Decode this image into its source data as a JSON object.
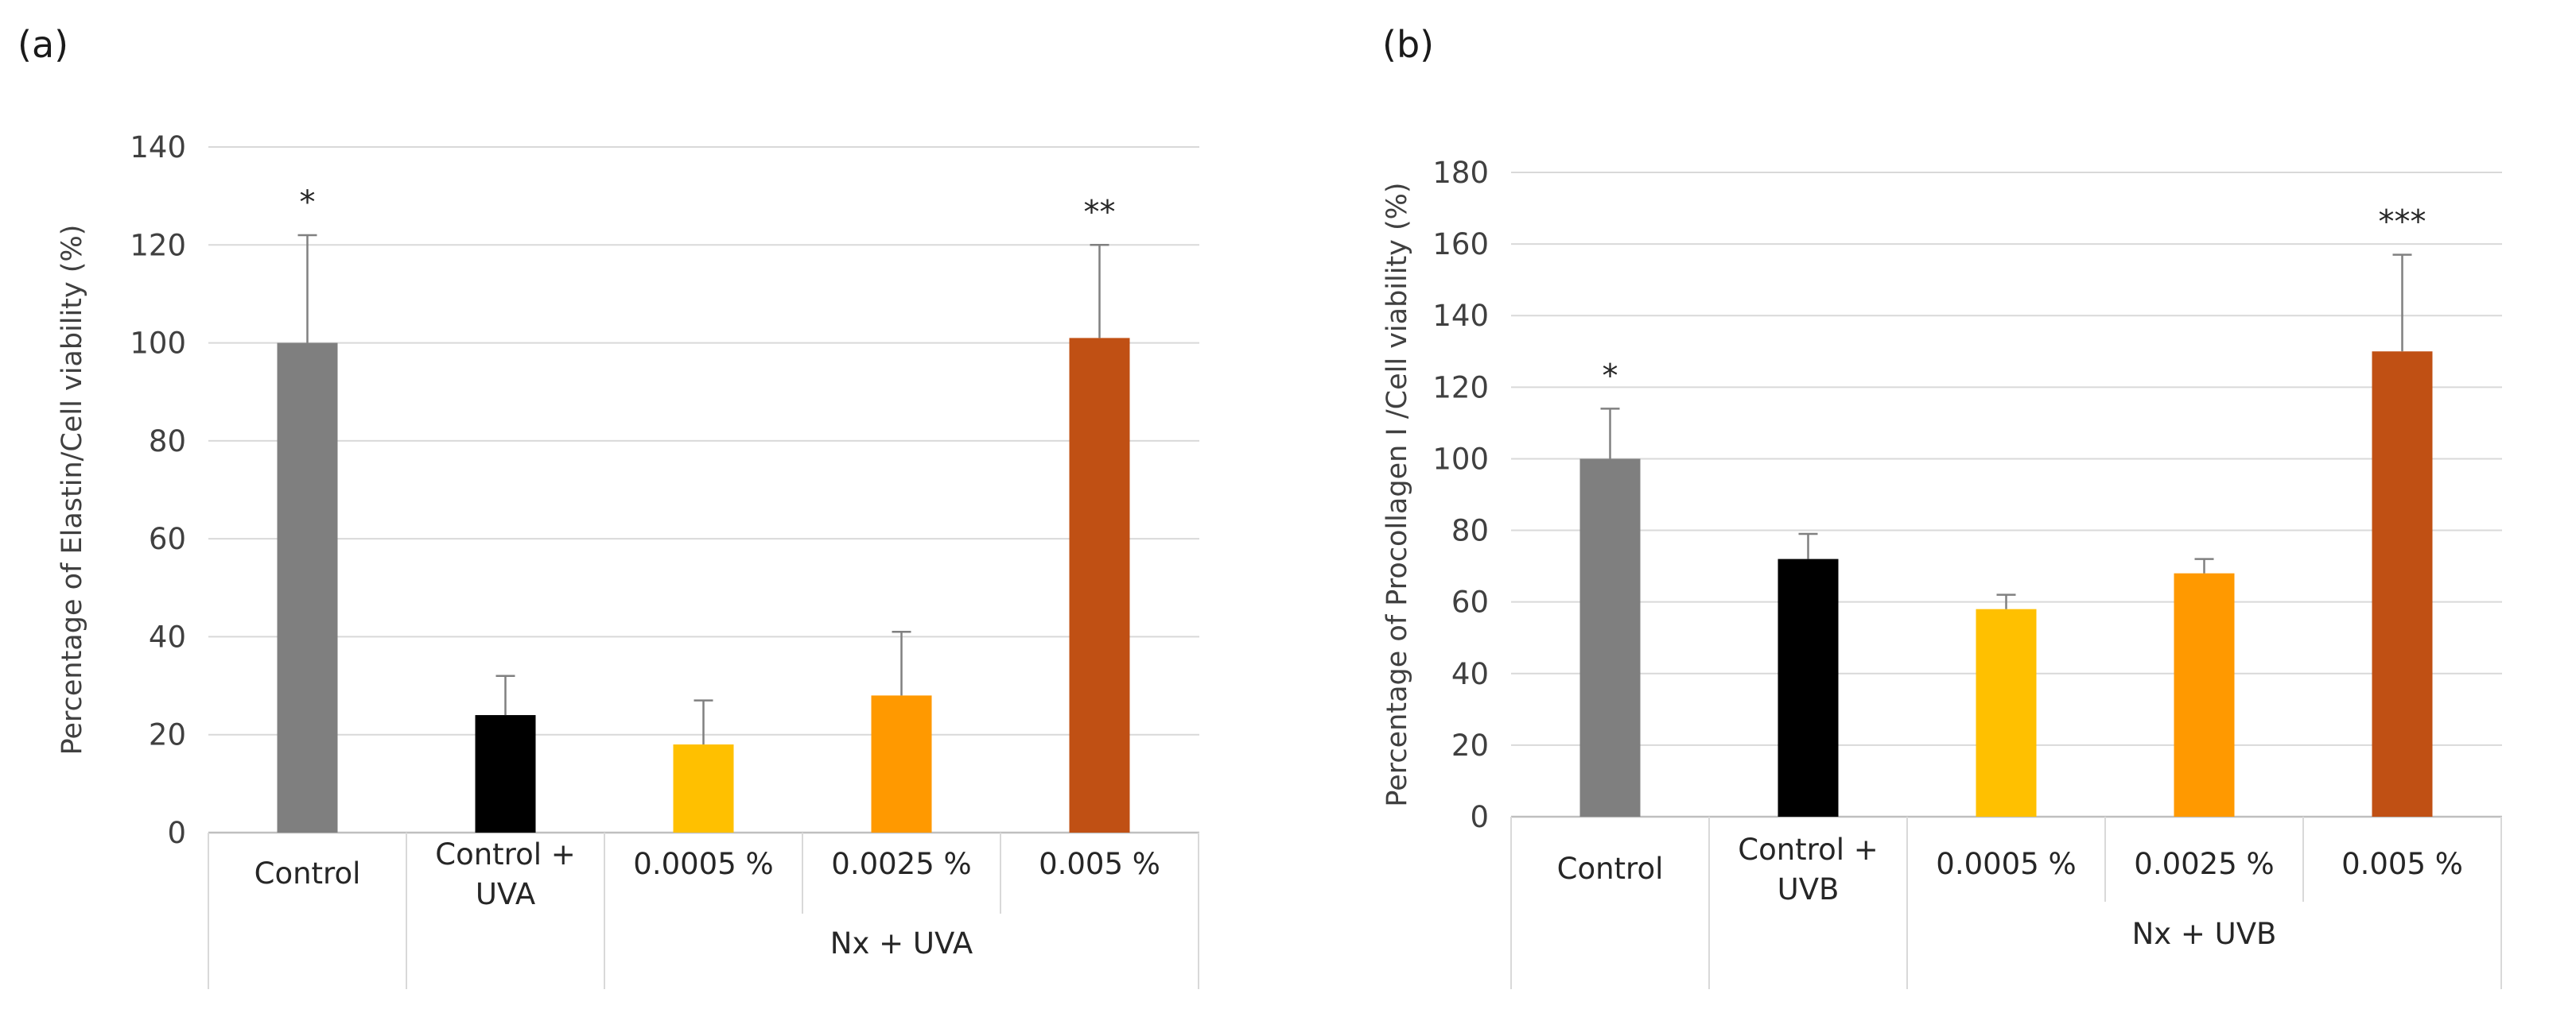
{
  "chart_data": [
    {
      "type": "bar",
      "panel_label": "(a)",
      "ylabel": "Percentage of Elastin/Cell viability (%)",
      "ylim": [
        0,
        140
      ],
      "yticks": [
        0,
        20,
        40,
        60,
        80,
        100,
        120,
        140
      ],
      "grid": true,
      "categories": [
        "Control",
        "Control + UVA",
        "0.0005 %",
        "0.0025 %",
        "0.005 %"
      ],
      "category_lines": [
        [
          "Control"
        ],
        [
          "Control +",
          "UVA"
        ],
        [
          "0.0005 %"
        ],
        [
          "0.0025 %"
        ],
        [
          "0.005 %"
        ]
      ],
      "group_label": "Nx + UVA",
      "values": [
        100,
        24,
        18,
        28,
        101
      ],
      "errors": [
        22,
        8,
        9,
        13,
        19
      ],
      "colors": [
        "#7f7f7f",
        "#000000",
        "#ffc000",
        "#ff9900",
        "#c05014"
      ],
      "significance": [
        "*",
        "",
        "",
        "",
        "**"
      ]
    },
    {
      "type": "bar",
      "panel_label": "(b)",
      "ylabel": "Percentage of Procollagen I /Cell viability (%)",
      "ylim": [
        0,
        180
      ],
      "yticks": [
        0,
        20,
        40,
        60,
        80,
        100,
        120,
        140,
        160,
        180
      ],
      "grid": true,
      "categories": [
        "Control",
        "Control + UVB",
        "0.0005 %",
        "0.0025 %",
        "0.005 %"
      ],
      "category_lines": [
        [
          "Control"
        ],
        [
          "Control +",
          "UVB"
        ],
        [
          "0.0005 %"
        ],
        [
          "0.0025 %"
        ],
        [
          "0.005 %"
        ]
      ],
      "group_label": "Nx + UVB",
      "values": [
        100,
        72,
        58,
        68,
        130
      ],
      "errors": [
        14,
        7,
        4,
        4,
        27
      ],
      "colors": [
        "#7f7f7f",
        "#000000",
        "#ffc000",
        "#ff9900",
        "#c05014"
      ],
      "significance": [
        "*",
        "",
        "",
        "",
        "***"
      ]
    }
  ]
}
